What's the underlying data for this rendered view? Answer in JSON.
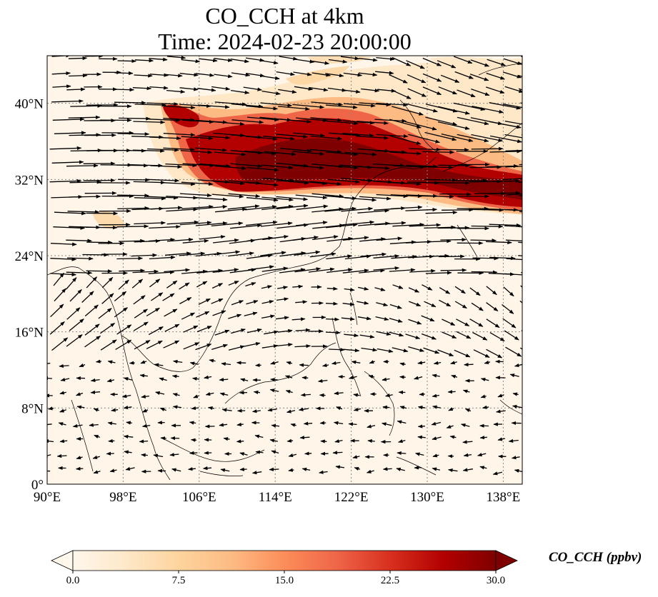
{
  "title": {
    "line1": "CO_CCH at 4km",
    "line2": "Time: 2024-02-23 20:00:00"
  },
  "map": {
    "projection": "PlateCarree",
    "lon_range": [
      90,
      140
    ],
    "lat_range": [
      0,
      45
    ],
    "x_ticks": [
      {
        "value": 90,
        "label": "90°E"
      },
      {
        "value": 98,
        "label": "98°E"
      },
      {
        "value": 106,
        "label": "106°E"
      },
      {
        "value": 114,
        "label": "114°E"
      },
      {
        "value": 122,
        "label": "122°E"
      },
      {
        "value": 130,
        "label": "130°E"
      },
      {
        "value": 138,
        "label": "138°E"
      }
    ],
    "y_ticks": [
      {
        "value": 0,
        "label": "0°"
      },
      {
        "value": 8,
        "label": "8°N"
      },
      {
        "value": 16,
        "label": "16°N"
      },
      {
        "value": 24,
        "label": "24°N"
      },
      {
        "value": 32,
        "label": "32°N"
      },
      {
        "value": 40,
        "label": "40°N"
      }
    ],
    "gridlines": true,
    "gridline_style": "dotted",
    "field": "CO_CCH",
    "level": "4km",
    "plume_description": "High CO_CCH band from ~103°E to 140°E between ~30°N and 40°N",
    "wind_vectors": true,
    "colors": {
      "background_field": "#fff5e8",
      "plume_max": "#7f0000",
      "vectors": "#000000"
    }
  },
  "colorbar": {
    "label": "CO_CCH (ppbv)",
    "min": 0.0,
    "max": 30.0,
    "extend": "both",
    "colormap": "OrRd",
    "ticks": [
      {
        "value": 0.0,
        "label": "0.0"
      },
      {
        "value": 7.5,
        "label": "7.5"
      },
      {
        "value": 15.0,
        "label": "15.0"
      },
      {
        "value": 22.5,
        "label": "22.5"
      },
      {
        "value": 30.0,
        "label": "30.0"
      }
    ]
  }
}
